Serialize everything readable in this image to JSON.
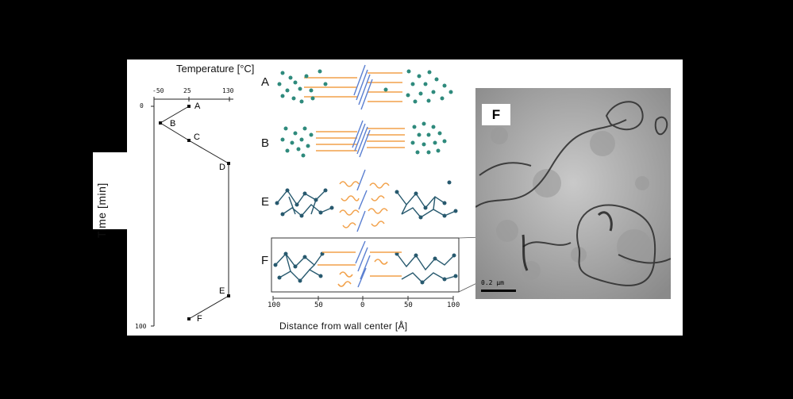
{
  "temperature_axis": {
    "title": "Temperature [°C]",
    "ticks": [
      "-50",
      "25",
      "130"
    ]
  },
  "time_axis": {
    "title": "Time [min]",
    "ticks": [
      "0",
      "100"
    ]
  },
  "profile_points": [
    {
      "label": "A"
    },
    {
      "label": "B"
    },
    {
      "label": "C"
    },
    {
      "label": "D"
    },
    {
      "label": "E"
    },
    {
      "label": "F"
    }
  ],
  "rows": [
    "A",
    "B",
    "E",
    "F"
  ],
  "distance_axis": {
    "title": "Distance from wall center [Å]",
    "ticks": [
      "100",
      "50",
      "0",
      "50",
      "100"
    ]
  },
  "micrograph": {
    "label": "F",
    "scale_bar": "0.2 μm"
  },
  "colors": {
    "teal": "#2e8a7c",
    "navy": "#27596e",
    "orange": "#f2a14a",
    "blue": "#5a7fd1"
  }
}
